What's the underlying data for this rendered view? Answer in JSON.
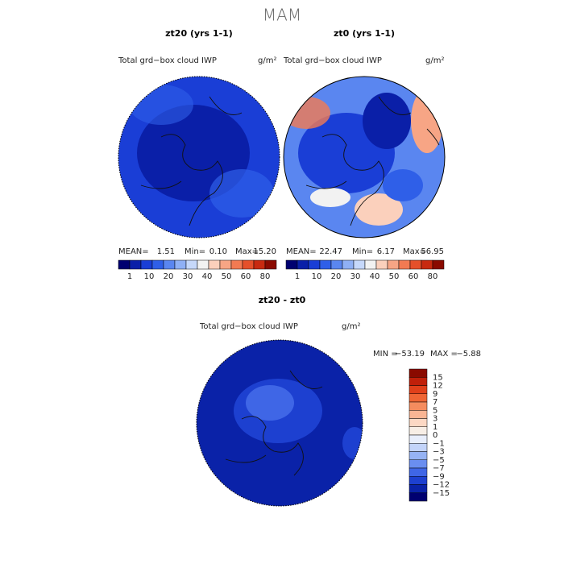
{
  "title": "MAM",
  "panels": [
    {
      "title": "zt20 (yrs 1-1)",
      "variable": "Total grd−box cloud IWP",
      "units": "g/m²",
      "stats": {
        "mean_label": "MEAN=",
        "mean": "1.51",
        "min_label": "Min=",
        "min": "0.10",
        "max_label": "Max=",
        "max": "15.20"
      }
    },
    {
      "title": "zt0 (yrs 1-1)",
      "variable": "Total grd−box cloud IWP",
      "units": "g/m²",
      "stats": {
        "mean_label": "MEAN=",
        "mean": "22.47",
        "min_label": "Min=",
        "min": "6.17",
        "max_label": "Max=",
        "max": "56.95"
      }
    }
  ],
  "colorbar": {
    "colors": [
      "#000070",
      "#0a1fa8",
      "#1a3ed6",
      "#2f5fe8",
      "#5a86f0",
      "#8fb0f5",
      "#c6d8fa",
      "#f2f2f2",
      "#fbd0bc",
      "#f7a585",
      "#f27a52",
      "#e5502a",
      "#c82a10",
      "#8a0a00"
    ],
    "labels": [
      "1",
      "10",
      "20",
      "30",
      "40",
      "50",
      "60",
      "80"
    ]
  },
  "difference": {
    "title": "zt20 - zt0",
    "variable": "Total grd−box cloud IWP",
    "units": "g/m²",
    "stats": {
      "min_label": "MIN =",
      "min": "−53.19",
      "max_label": "MAX =",
      "max": "−5.88"
    },
    "colorbar": {
      "colors": [
        "#8a0a00",
        "#c0200a",
        "#e0401a",
        "#ef6534",
        "#f58c5e",
        "#f9b594",
        "#fcd8c4",
        "#f7eee6",
        "#e8eefc",
        "#c3d4fa",
        "#96b3f4",
        "#6a8ef0",
        "#3f66e6",
        "#1d40d0",
        "#0a22a8",
        "#000070"
      ],
      "labels": [
        "15",
        "12",
        "9",
        "7",
        "5",
        "3",
        "1",
        "0",
        "−1",
        "−3",
        "−5",
        "−7",
        "−9",
        "−12",
        "−15"
      ]
    }
  }
}
